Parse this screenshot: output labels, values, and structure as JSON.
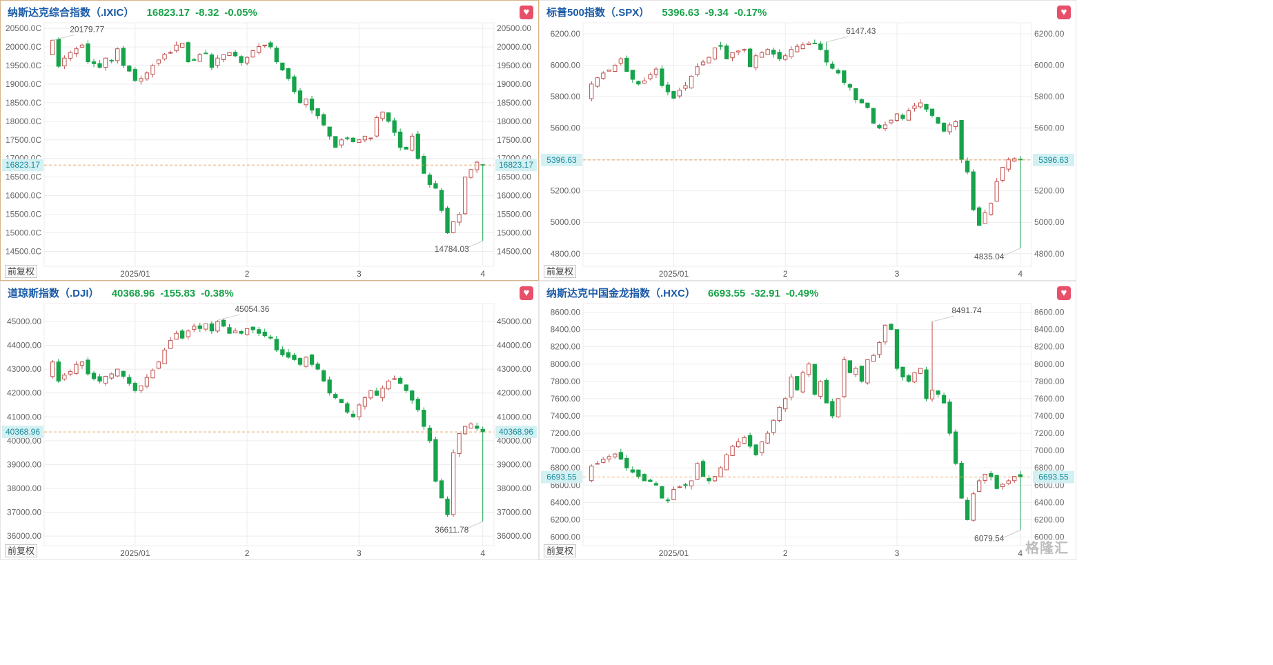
{
  "colors": {
    "up": "#c0504d",
    "down": "#16a34a",
    "grid": "#ececec",
    "priceLine": "#e8a15d",
    "axisText": "#666666",
    "tagBg": "#d3f0f3",
    "tagText": "#1a8a9a",
    "titleBlue": "#1a5aa6",
    "valueGreen": "#1aa34a"
  },
  "watermark": "格隆汇",
  "panels": [
    {
      "id": "ixic",
      "header": {
        "name": "纳斯达克综合指数（.IXIC）",
        "price": "16823.17",
        "change": "-8.32",
        "pct": "-0.05%"
      },
      "badge": "前复权",
      "heart_icon": "heart-icon",
      "chart_data": {
        "type": "candlestick",
        "ylim": [
          14100,
          20650
        ],
        "yticks": [
          14500,
          15000,
          15500,
          16000,
          16500,
          17000,
          17500,
          18000,
          18500,
          19000,
          19500,
          20000,
          20500
        ],
        "ytick_labels": [
          "14500.00",
          "15000.00",
          "15500.00",
          "16000.00",
          "16500.00",
          "17000.00",
          "17500.00",
          "18000.00",
          "18500.00",
          "19000.00",
          "19500.00",
          "20000.00",
          "20500.00"
        ],
        "ytick_labels_left": [
          "14500.0C",
          "15000.0C",
          "15500.0C",
          "16000.0C",
          "16500.0C",
          "17000.0C",
          "17500.0C",
          "18000.0C",
          "18500.0C",
          "19000.0C",
          "19500.0C",
          "20000.0C",
          "20500.0C"
        ],
        "xticks": [
          {
            "i": 14,
            "label": "2025/01"
          },
          {
            "i": 33,
            "label": "2"
          },
          {
            "i": 52,
            "label": "3"
          },
          {
            "i": 73,
            "label": "4"
          }
        ],
        "current": 16823.17,
        "current_label": "16823.17",
        "annotations": [
          {
            "text": "20179.77",
            "i": 0,
            "value": 20179.77
          },
          {
            "text": "14784.03",
            "i": 73,
            "value": 14784.03
          }
        ],
        "closes": [
          20180,
          19480,
          19700,
          19850,
          19950,
          20050,
          19600,
          19550,
          19450,
          19700,
          19620,
          19950,
          19500,
          19350,
          19100,
          19150,
          19300,
          19500,
          19650,
          19800,
          19850,
          20050,
          20100,
          19600,
          19650,
          19800,
          19830,
          19450,
          19700,
          19790,
          19850,
          19760,
          19580,
          19720,
          19900,
          20010,
          20050,
          20000,
          19600,
          19380,
          19150,
          18800,
          18500,
          18600,
          18300,
          18150,
          17900,
          17600,
          17300,
          17500,
          17550,
          17450,
          17500,
          17600,
          17550,
          18100,
          18250,
          18000,
          17700,
          17300,
          17250,
          17600,
          17000,
          16600,
          16300,
          16200,
          15600,
          15000,
          15300,
          15500,
          16500,
          16700,
          16900,
          16823
        ]
      }
    },
    {
      "id": "spx",
      "header": {
        "name": "标普500指数（.SPX）",
        "price": "5396.63",
        "change": "-9.34",
        "pct": "-0.17%"
      },
      "badge": "前复权",
      "heart_icon": "heart-icon",
      "chart_data": {
        "type": "candlestick",
        "ylim": [
          4720,
          6270
        ],
        "yticks": [
          4800,
          5000,
          5200,
          5400,
          5600,
          5800,
          6000,
          6200
        ],
        "ytick_labels": [
          "4800.00",
          "5000.00",
          "5200.00",
          "5400.00",
          "5600.00",
          "5800.00",
          "6000.00",
          "6200.00"
        ],
        "ytick_labels_left": [
          "4800.00",
          "5000.00",
          "5200.00",
          "5400.00",
          "5600.00",
          "5800.00",
          "6000.00",
          "6200.00"
        ],
        "xticks": [
          {
            "i": 14,
            "label": "2025/01"
          },
          {
            "i": 33,
            "label": "2"
          },
          {
            "i": 52,
            "label": "3"
          },
          {
            "i": 73,
            "label": "4"
          }
        ],
        "current": 5396.63,
        "current_label": "5396.63",
        "annotations": [
          {
            "text": "6147.43",
            "i": 40,
            "value": 6147.43
          },
          {
            "text": "4835.04",
            "i": 73,
            "value": 4835.04
          }
        ],
        "closes": [
          5880,
          5920,
          5950,
          5970,
          6000,
          6040,
          5960,
          5910,
          5880,
          5900,
          5940,
          5975,
          5870,
          5830,
          5790,
          5840,
          5870,
          5930,
          5990,
          6020,
          6050,
          6110,
          6120,
          6040,
          6080,
          6090,
          6100,
          5990,
          6060,
          6080,
          6100,
          6070,
          6040,
          6060,
          6100,
          6120,
          6130,
          6140,
          6140,
          6100,
          6020,
          5980,
          5950,
          5890,
          5860,
          5780,
          5760,
          5730,
          5630,
          5600,
          5620,
          5650,
          5690,
          5660,
          5710,
          5740,
          5760,
          5720,
          5680,
          5630,
          5580,
          5620,
          5640,
          5400,
          5320,
          5080,
          4980,
          5060,
          5120,
          5260,
          5350,
          5400,
          5405,
          5397
        ]
      }
    },
    {
      "id": "dji",
      "header": {
        "name": "道琼斯指数（.DJI）",
        "price": "40368.96",
        "change": "-155.83",
        "pct": "-0.38%"
      },
      "badge": "前复权",
      "heart_icon": "heart-icon",
      "chart_data": {
        "type": "candlestick",
        "ylim": [
          35600,
          45750
        ],
        "yticks": [
          36000,
          37000,
          38000,
          39000,
          40000,
          41000,
          42000,
          43000,
          44000,
          45000
        ],
        "ytick_labels": [
          "36000.00",
          "37000.00",
          "38000.00",
          "39000.00",
          "40000.00",
          "41000.00",
          "42000.00",
          "43000.00",
          "44000.00",
          "45000.00"
        ],
        "ytick_labels_left": [
          "36000.00",
          "37000.00",
          "38000.00",
          "39000.00",
          "40000.00",
          "41000.00",
          "42000.00",
          "43000.00",
          "44000.00",
          "45000.00"
        ],
        "xticks": [
          {
            "i": 14,
            "label": "2025/01"
          },
          {
            "i": 33,
            "label": "2"
          },
          {
            "i": 52,
            "label": "3"
          },
          {
            "i": 73,
            "label": "4"
          }
        ],
        "current": 40368.96,
        "current_label": "40368.96",
        "annotations": [
          {
            "text": "45054.36",
            "i": 28,
            "value": 45054.36
          },
          {
            "text": "36611.78",
            "i": 73,
            "value": 36611.78
          }
        ],
        "closes": [
          43300,
          42500,
          42750,
          42900,
          43200,
          43300,
          42800,
          42600,
          42500,
          42700,
          42800,
          43000,
          42700,
          42400,
          42100,
          42300,
          42650,
          42950,
          43300,
          43800,
          44200,
          44500,
          44300,
          44600,
          44800,
          44700,
          44900,
          44600,
          45000,
          44800,
          44500,
          44600,
          44500,
          44700,
          44650,
          44500,
          44400,
          44300,
          43800,
          43600,
          43500,
          43400,
          43200,
          43500,
          43200,
          43000,
          42500,
          42000,
          41800,
          41600,
          41200,
          41000,
          41500,
          41800,
          42100,
          41900,
          42200,
          42500,
          42600,
          42400,
          42100,
          41700,
          41300,
          40600,
          40000,
          38300,
          37600,
          36900,
          39500,
          40300,
          40600,
          40700,
          40520,
          40369
        ]
      }
    },
    {
      "id": "hxc",
      "header": {
        "name": "纳斯达克中国金龙指数（.HXC）",
        "price": "6693.55",
        "change": "-32.91",
        "pct": "-0.49%"
      },
      "badge": "前复权",
      "heart_icon": "heart-icon",
      "chart_data": {
        "type": "candlestick",
        "ylim": [
          5900,
          8700
        ],
        "yticks": [
          6000,
          6200,
          6400,
          6600,
          6800,
          7000,
          7200,
          7400,
          7600,
          7800,
          8000,
          8200,
          8400,
          8600
        ],
        "ytick_labels": [
          "6000.00",
          "6200.00",
          "6400.00",
          "6600.00",
          "6800.00",
          "7000.00",
          "7200.00",
          "7400.00",
          "7600.00",
          "7800.00",
          "8000.00",
          "8200.00",
          "8400.00",
          "8600.00"
        ],
        "ytick_labels_left": [
          "6000.00",
          "6200.00",
          "6400.00",
          "6600.00",
          "6800.00",
          "7000.00",
          "7200.00",
          "7400.00",
          "7600.00",
          "7800.00",
          "8000.00",
          "8200.00",
          "8400.00",
          "8600.00"
        ],
        "xticks": [
          {
            "i": 14,
            "label": "2025/01"
          },
          {
            "i": 33,
            "label": "2"
          },
          {
            "i": 52,
            "label": "3"
          },
          {
            "i": 73,
            "label": "4"
          }
        ],
        "current": 6693.55,
        "current_label": "6693.55",
        "annotations": [
          {
            "text": "8491.74",
            "i": 58,
            "value": 8491.74
          },
          {
            "text": "6079.54",
            "i": 73,
            "value": 6079.54
          }
        ],
        "closes": [
          6820,
          6850,
          6900,
          6930,
          6960,
          6900,
          6800,
          6750,
          6700,
          6650,
          6640,
          6600,
          6450,
          6420,
          6550,
          6580,
          6600,
          6650,
          6850,
          6700,
          6650,
          6700,
          6800,
          6950,
          7050,
          7100,
          7150,
          7050,
          6950,
          7100,
          7200,
          7350,
          7500,
          7600,
          7850,
          7700,
          7900,
          8000,
          7650,
          7800,
          7550,
          7400,
          7600,
          8050,
          7900,
          7950,
          7800,
          8050,
          8100,
          8250,
          8450,
          8400,
          7950,
          7850,
          7800,
          7900,
          7950,
          7600,
          7700,
          7650,
          7550,
          7200,
          6850,
          6450,
          6200,
          6500,
          6650,
          6726,
          6694,
          6560,
          6610,
          6650,
          6700,
          6694
        ]
      }
    }
  ]
}
